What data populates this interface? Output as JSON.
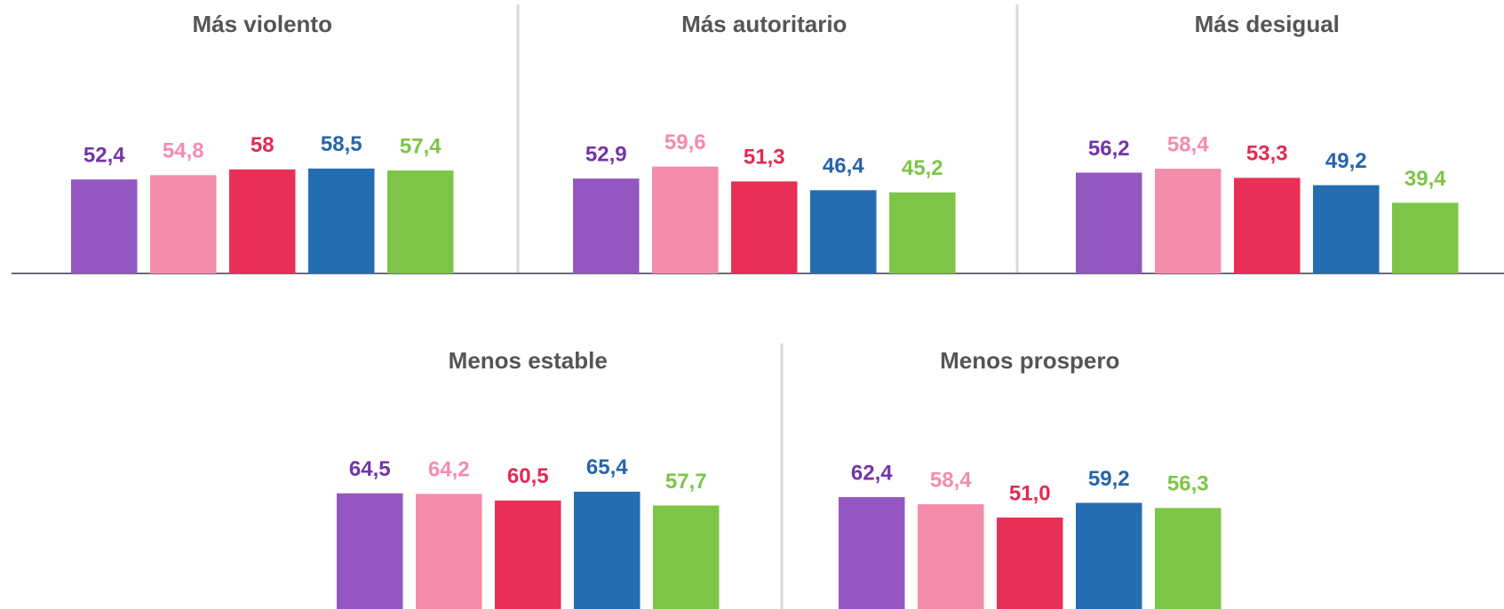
{
  "chart_data": [
    {
      "type": "bar",
      "title": "Más violento",
      "categories": [
        null,
        null,
        null,
        null,
        null
      ],
      "values": [
        52.4,
        54.8,
        58,
        58.5,
        57.4
      ],
      "value_labels": [
        "52,4",
        "54,8",
        "58",
        "58,5",
        "57,4"
      ],
      "colors": [
        "#9457c2",
        "#f48cab",
        "#e83057",
        "#246db1",
        "#7dc546"
      ],
      "label_colors": [
        "#7434ab",
        "#f48cab",
        "#e32a52",
        "#2765ab",
        "#7dc546"
      ],
      "ylim": [
        0,
        100
      ]
    },
    {
      "type": "bar",
      "title": "Más autoritario",
      "categories": [
        null,
        null,
        null,
        null,
        null
      ],
      "values": [
        52.9,
        59.6,
        51.3,
        46.4,
        45.2
      ],
      "value_labels": [
        "52,9",
        "59,6",
        "51,3",
        "46,4",
        "45,2"
      ],
      "colors": [
        "#9457c2",
        "#f48cab",
        "#e83057",
        "#246db1",
        "#7dc546"
      ],
      "label_colors": [
        "#7434ab",
        "#f48cab",
        "#e32a52",
        "#2765ab",
        "#7dc546"
      ],
      "ylim": [
        0,
        100
      ]
    },
    {
      "type": "bar",
      "title": "Más desigual",
      "categories": [
        null,
        null,
        null,
        null,
        null
      ],
      "values": [
        56.2,
        58.4,
        53.3,
        49.2,
        39.4
      ],
      "value_labels": [
        "56,2",
        "58,4",
        "53,3",
        "49,2",
        "39,4"
      ],
      "colors": [
        "#9457c2",
        "#f48cab",
        "#e83057",
        "#246db1",
        "#7dc546"
      ],
      "label_colors": [
        "#7434ab",
        "#f48cab",
        "#e32a52",
        "#2765ab",
        "#7dc546"
      ],
      "ylim": [
        0,
        100
      ]
    },
    {
      "type": "bar",
      "title": "Menos estable",
      "categories": [
        null,
        null,
        null,
        null,
        null
      ],
      "values": [
        64.5,
        64.2,
        60.5,
        65.4,
        57.7
      ],
      "value_labels": [
        "64,5",
        "64,2",
        "60,5",
        "65,4",
        "57,7"
      ],
      "colors": [
        "#9457c2",
        "#f48cab",
        "#e83057",
        "#246db1",
        "#7dc546"
      ],
      "label_colors": [
        "#7434ab",
        "#f48cab",
        "#e32a52",
        "#2765ab",
        "#7dc546"
      ],
      "ylim": [
        0,
        100
      ]
    },
    {
      "type": "bar",
      "title": "Menos prospero",
      "categories": [
        null,
        null,
        null,
        null,
        null
      ],
      "values": [
        62.4,
        58.4,
        51.0,
        59.2,
        56.3
      ],
      "value_labels": [
        "62,4",
        "58,4",
        "51,0",
        "59,2",
        "56,3"
      ],
      "colors": [
        "#9457c2",
        "#f48cab",
        "#e83057",
        "#246db1",
        "#7dc546"
      ],
      "label_colors": [
        "#7434ab",
        "#f48cab",
        "#e32a52",
        "#2765ab",
        "#7dc546"
      ],
      "ylim": [
        0,
        100
      ]
    }
  ]
}
